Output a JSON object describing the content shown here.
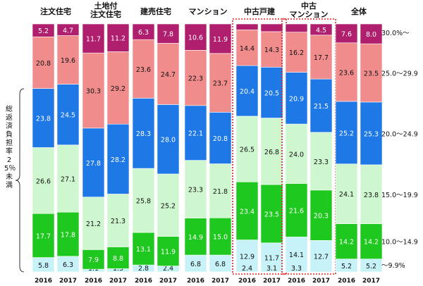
{
  "chart_data": {
    "type": "bar",
    "stacked": true,
    "series_order": [
      "~9.9%",
      "10.0~14.9",
      "15.0~19.9",
      "20.0~24.9",
      "25.0~29.9",
      "30.0%~"
    ],
    "legend": [
      {
        "label": "30.0%～",
        "series": 5
      },
      {
        "label": "25.0～29.9",
        "series": 4
      },
      {
        "label": "20.0～24.9",
        "series": 3
      },
      {
        "label": "15.0～19.9",
        "series": 2
      },
      {
        "label": "10.0～14.9",
        "series": 1
      },
      {
        "label": "～9.9%",
        "series": 0
      }
    ],
    "colors": [
      "#c6f2f8",
      "#1ec81e",
      "#cff7cf",
      "#1e78e6",
      "#f08c8c",
      "#b01e6e"
    ],
    "groups": [
      {
        "title": "注文住宅",
        "highlight": false,
        "bars": [
          {
            "year": "2016",
            "values": [
              5.8,
              17.7,
              26.6,
              23.8,
              20.8,
              5.2
            ]
          },
          {
            "year": "2017",
            "values": [
              6.3,
              17.8,
              27.1,
              24.5,
              19.6,
              4.7
            ]
          }
        ]
      },
      {
        "title": "土地付\n注文住宅",
        "highlight": false,
        "bars": [
          {
            "year": "2016",
            "values": [
              1.1,
              7.9,
              21.2,
              27.8,
              30.3,
              11.7
            ]
          },
          {
            "year": "2017",
            "values": [
              1.3,
              8.8,
              21.3,
              28.2,
              29.2,
              11.2
            ]
          }
        ]
      },
      {
        "title": "建売住宅",
        "highlight": false,
        "bars": [
          {
            "year": "2016",
            "values": [
              2.8,
              13.1,
              25.8,
              28.3,
              23.6,
              6.3
            ]
          },
          {
            "year": "2017",
            "values": [
              2.4,
              11.9,
              25.2,
              28.0,
              24.7,
              7.8
            ]
          }
        ]
      },
      {
        "title": "マンション",
        "highlight": false,
        "bars": [
          {
            "year": "2016",
            "values": [
              6.8,
              14.9,
              23.3,
              22.1,
              22.3,
              10.6
            ]
          },
          {
            "year": "2017",
            "values": [
              6.8,
              15.0,
              21.8,
              20.8,
              23.7,
              11.9
            ]
          }
        ]
      },
      {
        "title": "中古戸建",
        "highlight": true,
        "bars": [
          {
            "year": "2016",
            "values": [
              12.9,
              23.4,
              26.5,
              20.4,
              14.4,
              2.4
            ]
          },
          {
            "year": "2017",
            "values": [
              11.7,
              23.5,
              26.8,
              20.5,
              14.3,
              3.1
            ]
          }
        ]
      },
      {
        "title": "中古\nマンション",
        "highlight": true,
        "bars": [
          {
            "year": "2016",
            "values": [
              14.1,
              21.6,
              24.0,
              20.9,
              16.2,
              3.3
            ]
          },
          {
            "year": "2017",
            "values": [
              12.7,
              20.3,
              23.3,
              21.5,
              17.7,
              4.5
            ]
          }
        ]
      },
      {
        "title": "全体",
        "highlight": false,
        "bars": [
          {
            "year": "2016",
            "values": [
              5.2,
              14.2,
              24.1,
              25.2,
              23.6,
              7.6
            ]
          },
          {
            "year": "2017",
            "values": [
              5.2,
              14.2,
              23.8,
              25.3,
              23.5,
              8.0
            ]
          }
        ]
      }
    ],
    "side_label": "総返済負担率25％未満",
    "ylim": [
      0,
      100
    ]
  }
}
